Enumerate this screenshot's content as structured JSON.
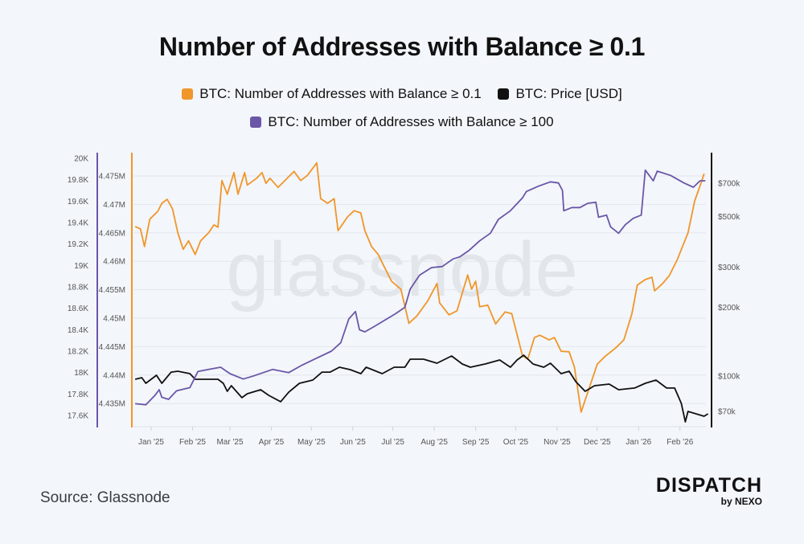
{
  "title": "Number of Addresses with Balance ≥ 0.1",
  "source": "Source: Glassnode",
  "logo": {
    "main": "DISPATCH",
    "sub": "by NEXO"
  },
  "watermark": "glassnode",
  "legend": [
    {
      "label": "BTC: Number of Addresses with Balance ≥ 0.1",
      "color": "#f0962a"
    },
    {
      "label": "BTC: Price [USD]",
      "color": "#111111"
    },
    {
      "label": "BTC: Number of Addresses with Balance ≥ 100",
      "color": "#6a57a8"
    }
  ],
  "chart_data": {
    "type": "line",
    "title": "Number of Addresses with Balance ≥ 0.1",
    "grid": true,
    "legend_position": "top",
    "x_ticks": [
      "Jan '25",
      "Feb '25",
      "Mar '25",
      "Apr '25",
      "May '25",
      "Jun '25",
      "Jul '25",
      "Aug '25",
      "Sep '25",
      "Oct '25",
      "Nov '25",
      "Dec '25",
      "Jan '26",
      "Feb '26"
    ],
    "x_tick_dates": [
      "2025-01-01",
      "2025-02-01",
      "2025-03-01",
      "2025-04-01",
      "2025-05-01",
      "2025-06-01",
      "2025-07-01",
      "2025-08-01",
      "2025-09-01",
      "2025-10-01",
      "2025-11-01",
      "2025-12-01",
      "2026-01-01",
      "2026-02-01"
    ],
    "axes": {
      "left_outer": {
        "series": "BTC: Number of Addresses with Balance ≥ 100",
        "ticks": [
          "20K",
          "19.8K",
          "19.6K",
          "19.4K",
          "19.2K",
          "19K",
          "18.8K",
          "18.6K",
          "18.4K",
          "18.2K",
          "18K",
          "17.8K",
          "17.6K"
        ],
        "tick_values": [
          20000,
          19800,
          19600,
          19400,
          19200,
          19000,
          18800,
          18600,
          18400,
          18200,
          18000,
          17800,
          17600
        ],
        "color": "#6a57a8"
      },
      "left_inner": {
        "series": "BTC: Number of Addresses with Balance ≥ 0.1",
        "ticks": [
          "4.475M",
          "4.47M",
          "4.465M",
          "4.46M",
          "4.455M",
          "4.45M",
          "4.445M",
          "4.44M",
          "4.435M"
        ],
        "tick_values": [
          4475000,
          4470000,
          4465000,
          4460000,
          4455000,
          4450000,
          4445000,
          4440000,
          4435000
        ],
        "color": "#f0962a"
      },
      "right": {
        "series": "BTC: Price [USD]",
        "scale": "log",
        "ticks": [
          "$700k",
          "$500k",
          "$300k",
          "$200k",
          "$100k",
          "$70k"
        ],
        "tick_values": [
          700000,
          500000,
          300000,
          200000,
          100000,
          70000
        ],
        "color": "#111111"
      }
    },
    "series": [
      {
        "name": "BTC: Number of Addresses with Balance ≥ 0.1",
        "axis": "left_inner",
        "color": "#f0962a",
        "points": [
          [
            "2024-12-20",
            4466100
          ],
          [
            "2024-12-24",
            4465700
          ],
          [
            "2024-12-27",
            4462600
          ],
          [
            "2024-12-31",
            4467400
          ],
          [
            "2025-01-06",
            4468800
          ],
          [
            "2025-01-09",
            4470200
          ],
          [
            "2025-01-13",
            4470900
          ],
          [
            "2025-01-17",
            4469200
          ],
          [
            "2025-01-21",
            4465000
          ],
          [
            "2025-01-25",
            4462100
          ],
          [
            "2025-01-29",
            4463600
          ],
          [
            "2025-02-03",
            4461200
          ],
          [
            "2025-02-07",
            4463600
          ],
          [
            "2025-02-13",
            4465000
          ],
          [
            "2025-02-17",
            4466400
          ],
          [
            "2025-02-20",
            4466000
          ],
          [
            "2025-02-23",
            4474200
          ],
          [
            "2025-02-27",
            4471800
          ],
          [
            "2025-03-04",
            4475600
          ],
          [
            "2025-03-07",
            4471800
          ],
          [
            "2025-03-12",
            4475600
          ],
          [
            "2025-03-14",
            4473400
          ],
          [
            "2025-03-21",
            4474600
          ],
          [
            "2025-03-25",
            4475600
          ],
          [
            "2025-03-28",
            4473700
          ],
          [
            "2025-03-31",
            4474600
          ],
          [
            "2025-04-06",
            4473000
          ],
          [
            "2025-04-12",
            4474400
          ],
          [
            "2025-04-18",
            4475800
          ],
          [
            "2025-04-23",
            4474200
          ],
          [
            "2025-04-28",
            4475100
          ],
          [
            "2025-05-05",
            4477300
          ],
          [
            "2025-05-08",
            4471000
          ],
          [
            "2025-05-13",
            4470200
          ],
          [
            "2025-05-18",
            4471000
          ],
          [
            "2025-05-21",
            4465400
          ],
          [
            "2025-05-28",
            4467800
          ],
          [
            "2025-06-02",
            4468900
          ],
          [
            "2025-06-07",
            4468500
          ],
          [
            "2025-06-10",
            4465400
          ],
          [
            "2025-06-15",
            4462600
          ],
          [
            "2025-06-20",
            4461200
          ],
          [
            "2025-06-24",
            4459300
          ],
          [
            "2025-06-30",
            4456500
          ],
          [
            "2025-07-07",
            4455100
          ],
          [
            "2025-07-13",
            4449100
          ],
          [
            "2025-07-19",
            4450400
          ],
          [
            "2025-07-27",
            4453000
          ],
          [
            "2025-08-03",
            4456100
          ],
          [
            "2025-08-05",
            4452700
          ],
          [
            "2025-08-12",
            4450600
          ],
          [
            "2025-08-18",
            4451300
          ],
          [
            "2025-08-26",
            4457600
          ],
          [
            "2025-08-29",
            4455100
          ],
          [
            "2025-09-01",
            4456500
          ],
          [
            "2025-09-04",
            4452000
          ],
          [
            "2025-09-10",
            4452300
          ],
          [
            "2025-09-16",
            4449000
          ],
          [
            "2025-09-23",
            4451100
          ],
          [
            "2025-09-28",
            4450800
          ],
          [
            "2025-10-03",
            4446200
          ],
          [
            "2025-10-06",
            4443400
          ],
          [
            "2025-10-10",
            4442800
          ],
          [
            "2025-10-15",
            4446600
          ],
          [
            "2025-10-19",
            4447000
          ],
          [
            "2025-10-26",
            4446200
          ],
          [
            "2025-10-30",
            4446600
          ],
          [
            "2025-11-04",
            4444200
          ],
          [
            "2025-11-10",
            4444100
          ],
          [
            "2025-11-14",
            4441400
          ],
          [
            "2025-11-19",
            4433500
          ],
          [
            "2025-11-25",
            4437700
          ],
          [
            "2025-12-01",
            4441900
          ],
          [
            "2025-12-07",
            4443300
          ],
          [
            "2025-12-15",
            4444800
          ],
          [
            "2025-12-21",
            4446200
          ],
          [
            "2025-12-27",
            4450800
          ],
          [
            "2025-12-31",
            4455800
          ],
          [
            "2026-01-06",
            4456800
          ],
          [
            "2026-01-11",
            4457200
          ],
          [
            "2026-01-13",
            4454800
          ],
          [
            "2026-01-19",
            4456100
          ],
          [
            "2026-01-24",
            4457500
          ],
          [
            "2026-01-30",
            4460300
          ],
          [
            "2026-02-07",
            4465000
          ],
          [
            "2026-02-12",
            4470600
          ],
          [
            "2026-02-17",
            4473900
          ],
          [
            "2026-02-19",
            4475400
          ]
        ]
      },
      {
        "name": "BTC: Price [USD]",
        "axis": "right",
        "color": "#111111",
        "points": [
          [
            "2024-12-20",
            96800
          ],
          [
            "2024-12-25",
            98400
          ],
          [
            "2024-12-28",
            93000
          ],
          [
            "2025-01-05",
            100800
          ],
          [
            "2025-01-09",
            93000
          ],
          [
            "2025-01-16",
            104100
          ],
          [
            "2025-01-21",
            105000
          ],
          [
            "2025-01-30",
            102500
          ],
          [
            "2025-02-03",
            96800
          ],
          [
            "2025-02-12",
            96800
          ],
          [
            "2025-02-20",
            96800
          ],
          [
            "2025-02-24",
            93000
          ],
          [
            "2025-02-27",
            85700
          ],
          [
            "2025-03-02",
            90700
          ],
          [
            "2025-03-10",
            80400
          ],
          [
            "2025-03-14",
            83700
          ],
          [
            "2025-03-24",
            87100
          ],
          [
            "2025-03-30",
            82300
          ],
          [
            "2025-04-08",
            77200
          ],
          [
            "2025-04-14",
            85000
          ],
          [
            "2025-04-22",
            93000
          ],
          [
            "2025-05-02",
            96000
          ],
          [
            "2025-05-09",
            104100
          ],
          [
            "2025-05-15",
            104100
          ],
          [
            "2025-05-22",
            109300
          ],
          [
            "2025-05-30",
            106700
          ],
          [
            "2025-06-07",
            102500
          ],
          [
            "2025-06-11",
            109300
          ],
          [
            "2025-06-23",
            102500
          ],
          [
            "2025-07-02",
            109300
          ],
          [
            "2025-07-10",
            109300
          ],
          [
            "2025-07-14",
            118600
          ],
          [
            "2025-07-24",
            118600
          ],
          [
            "2025-08-03",
            113900
          ],
          [
            "2025-08-14",
            122500
          ],
          [
            "2025-08-22",
            112900
          ],
          [
            "2025-08-28",
            109300
          ],
          [
            "2025-09-08",
            112900
          ],
          [
            "2025-09-19",
            117600
          ],
          [
            "2025-09-27",
            109300
          ],
          [
            "2025-10-02",
            117600
          ],
          [
            "2025-10-07",
            123500
          ],
          [
            "2025-10-14",
            112900
          ],
          [
            "2025-10-22",
            109300
          ],
          [
            "2025-10-27",
            113900
          ],
          [
            "2025-11-04",
            102500
          ],
          [
            "2025-11-10",
            105000
          ],
          [
            "2025-11-15",
            94500
          ],
          [
            "2025-11-22",
            85700
          ],
          [
            "2025-11-29",
            90700
          ],
          [
            "2025-12-10",
            92200
          ],
          [
            "2025-12-17",
            87100
          ],
          [
            "2025-12-29",
            88600
          ],
          [
            "2026-01-06",
            93000
          ],
          [
            "2026-01-14",
            96000
          ],
          [
            "2026-01-22",
            88600
          ],
          [
            "2026-01-28",
            88600
          ],
          [
            "2026-02-02",
            75900
          ],
          [
            "2026-02-05",
            63000
          ],
          [
            "2026-02-07",
            70000
          ],
          [
            "2026-02-13",
            68300
          ],
          [
            "2026-02-19",
            66700
          ],
          [
            "2026-02-22",
            68300
          ]
        ]
      },
      {
        "name": "BTC: Number of Addresses with Balance ≥ 100",
        "axis": "left_outer",
        "color": "#6a57a8",
        "points": [
          [
            "2024-12-20",
            17710
          ],
          [
            "2024-12-28",
            17700
          ],
          [
            "2025-01-04",
            17790
          ],
          [
            "2025-01-07",
            17840
          ],
          [
            "2025-01-09",
            17770
          ],
          [
            "2025-01-14",
            17750
          ],
          [
            "2025-01-20",
            17830
          ],
          [
            "2025-01-30",
            17860
          ],
          [
            "2025-02-05",
            18010
          ],
          [
            "2025-02-13",
            18030
          ],
          [
            "2025-02-22",
            18050
          ],
          [
            "2025-03-01",
            17990
          ],
          [
            "2025-03-11",
            17940
          ],
          [
            "2025-03-19",
            17970
          ],
          [
            "2025-04-02",
            18030
          ],
          [
            "2025-04-14",
            18000
          ],
          [
            "2025-04-24",
            18070
          ],
          [
            "2025-05-04",
            18130
          ],
          [
            "2025-05-16",
            18200
          ],
          [
            "2025-05-23",
            18280
          ],
          [
            "2025-05-29",
            18500
          ],
          [
            "2025-06-03",
            18570
          ],
          [
            "2025-06-06",
            18400
          ],
          [
            "2025-06-10",
            18380
          ],
          [
            "2025-06-17",
            18430
          ],
          [
            "2025-06-25",
            18490
          ],
          [
            "2025-07-03",
            18550
          ],
          [
            "2025-07-10",
            18610
          ],
          [
            "2025-07-14",
            18780
          ],
          [
            "2025-07-21",
            18910
          ],
          [
            "2025-07-30",
            18980
          ],
          [
            "2025-08-07",
            18990
          ],
          [
            "2025-08-15",
            19060
          ],
          [
            "2025-08-20",
            19080
          ],
          [
            "2025-08-27",
            19140
          ],
          [
            "2025-09-04",
            19230
          ],
          [
            "2025-09-12",
            19300
          ],
          [
            "2025-09-18",
            19430
          ],
          [
            "2025-09-27",
            19510
          ],
          [
            "2025-10-06",
            19630
          ],
          [
            "2025-10-09",
            19690
          ],
          [
            "2025-10-18",
            19740
          ],
          [
            "2025-10-27",
            19780
          ],
          [
            "2025-11-02",
            19770
          ],
          [
            "2025-11-05",
            19700
          ],
          [
            "2025-11-06",
            19510
          ],
          [
            "2025-11-12",
            19540
          ],
          [
            "2025-11-18",
            19540
          ],
          [
            "2025-11-24",
            19580
          ],
          [
            "2025-11-30",
            19590
          ],
          [
            "2025-12-02",
            19450
          ],
          [
            "2025-12-08",
            19470
          ],
          [
            "2025-12-11",
            19360
          ],
          [
            "2025-12-17",
            19300
          ],
          [
            "2025-12-22",
            19380
          ],
          [
            "2025-12-28",
            19440
          ],
          [
            "2026-01-03",
            19470
          ],
          [
            "2026-01-06",
            19890
          ],
          [
            "2026-01-12",
            19790
          ],
          [
            "2026-01-15",
            19880
          ],
          [
            "2026-01-25",
            19840
          ],
          [
            "2026-02-04",
            19770
          ],
          [
            "2026-02-11",
            19730
          ],
          [
            "2026-02-16",
            19790
          ],
          [
            "2026-02-20",
            19790
          ]
        ]
      }
    ]
  }
}
